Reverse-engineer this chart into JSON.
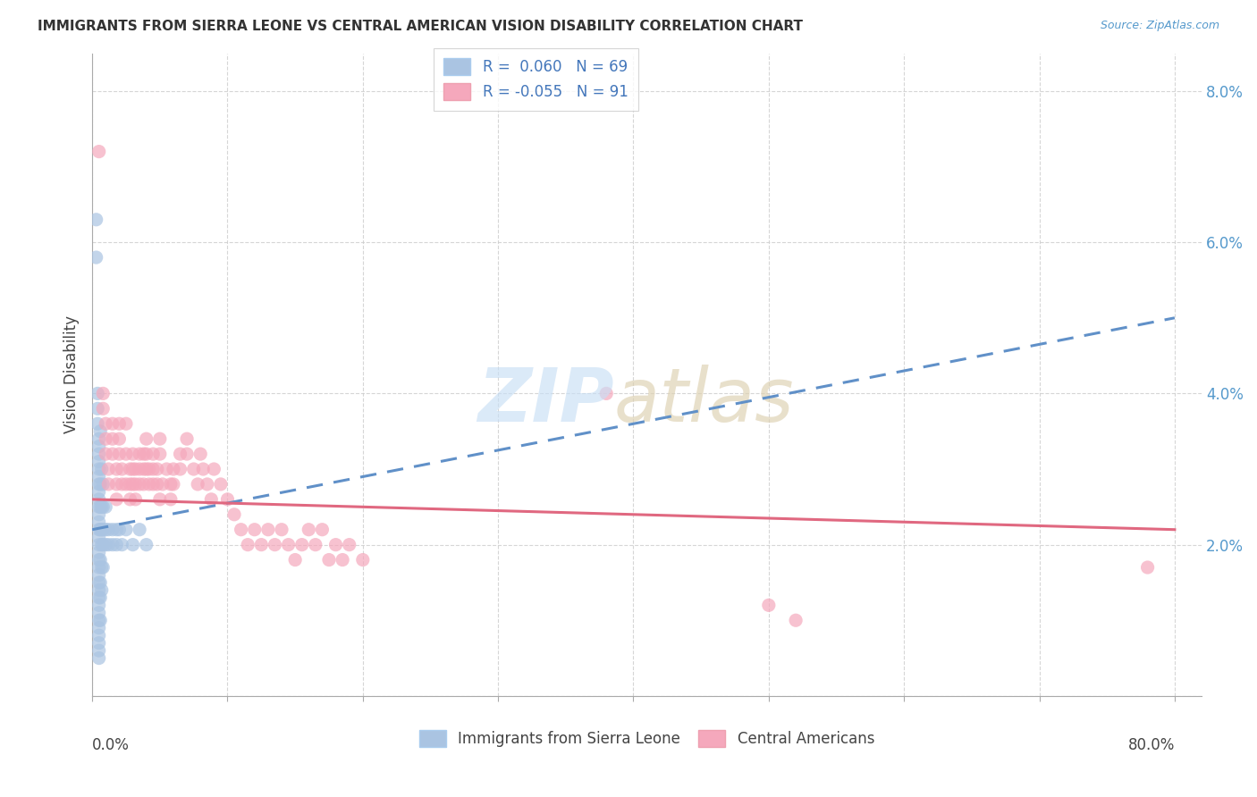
{
  "title": "IMMIGRANTS FROM SIERRA LEONE VS CENTRAL AMERICAN VISION DISABILITY CORRELATION CHART",
  "source": "Source: ZipAtlas.com",
  "ylabel": "Vision Disability",
  "ylim": [
    0.0,
    0.085
  ],
  "xlim": [
    0.0,
    0.82
  ],
  "y_ticks": [
    0.0,
    0.02,
    0.04,
    0.06,
    0.08
  ],
  "y_tick_labels": [
    "",
    "2.0%",
    "4.0%",
    "6.0%",
    "8.0%"
  ],
  "blue_color": "#aac4e2",
  "pink_color": "#f5a8bc",
  "blue_line_color": "#6090c8",
  "pink_line_color": "#e06880",
  "blue_line": [
    [
      0.0,
      0.022
    ],
    [
      0.8,
      0.05
    ]
  ],
  "pink_line": [
    [
      0.0,
      0.026
    ],
    [
      0.8,
      0.022
    ]
  ],
  "blue_scatter": [
    [
      0.003,
      0.063
    ],
    [
      0.003,
      0.058
    ],
    [
      0.004,
      0.04
    ],
    [
      0.004,
      0.038
    ],
    [
      0.004,
      0.036
    ],
    [
      0.005,
      0.034
    ],
    [
      0.005,
      0.033
    ],
    [
      0.005,
      0.032
    ],
    [
      0.005,
      0.031
    ],
    [
      0.005,
      0.03
    ],
    [
      0.005,
      0.029
    ],
    [
      0.005,
      0.028
    ],
    [
      0.005,
      0.027
    ],
    [
      0.005,
      0.026
    ],
    [
      0.005,
      0.025
    ],
    [
      0.005,
      0.024
    ],
    [
      0.005,
      0.023
    ],
    [
      0.005,
      0.022
    ],
    [
      0.005,
      0.021
    ],
    [
      0.005,
      0.02
    ],
    [
      0.005,
      0.019
    ],
    [
      0.005,
      0.018
    ],
    [
      0.005,
      0.017
    ],
    [
      0.005,
      0.016
    ],
    [
      0.005,
      0.015
    ],
    [
      0.005,
      0.014
    ],
    [
      0.005,
      0.013
    ],
    [
      0.005,
      0.012
    ],
    [
      0.005,
      0.011
    ],
    [
      0.005,
      0.01
    ],
    [
      0.005,
      0.009
    ],
    [
      0.005,
      0.008
    ],
    [
      0.005,
      0.007
    ],
    [
      0.005,
      0.006
    ],
    [
      0.005,
      0.005
    ],
    [
      0.006,
      0.035
    ],
    [
      0.006,
      0.028
    ],
    [
      0.006,
      0.025
    ],
    [
      0.006,
      0.022
    ],
    [
      0.006,
      0.018
    ],
    [
      0.006,
      0.015
    ],
    [
      0.006,
      0.013
    ],
    [
      0.006,
      0.01
    ],
    [
      0.007,
      0.03
    ],
    [
      0.007,
      0.025
    ],
    [
      0.007,
      0.022
    ],
    [
      0.007,
      0.02
    ],
    [
      0.007,
      0.017
    ],
    [
      0.007,
      0.014
    ],
    [
      0.008,
      0.028
    ],
    [
      0.008,
      0.025
    ],
    [
      0.008,
      0.022
    ],
    [
      0.008,
      0.02
    ],
    [
      0.008,
      0.017
    ],
    [
      0.01,
      0.025
    ],
    [
      0.01,
      0.022
    ],
    [
      0.01,
      0.02
    ],
    [
      0.012,
      0.022
    ],
    [
      0.012,
      0.02
    ],
    [
      0.015,
      0.022
    ],
    [
      0.015,
      0.02
    ],
    [
      0.018,
      0.022
    ],
    [
      0.018,
      0.02
    ],
    [
      0.02,
      0.022
    ],
    [
      0.022,
      0.02
    ],
    [
      0.025,
      0.022
    ],
    [
      0.03,
      0.02
    ],
    [
      0.035,
      0.022
    ],
    [
      0.04,
      0.02
    ]
  ],
  "pink_scatter": [
    [
      0.005,
      0.072
    ],
    [
      0.008,
      0.04
    ],
    [
      0.008,
      0.038
    ],
    [
      0.01,
      0.036
    ],
    [
      0.01,
      0.034
    ],
    [
      0.01,
      0.032
    ],
    [
      0.012,
      0.03
    ],
    [
      0.012,
      0.028
    ],
    [
      0.015,
      0.036
    ],
    [
      0.015,
      0.034
    ],
    [
      0.015,
      0.032
    ],
    [
      0.018,
      0.03
    ],
    [
      0.018,
      0.028
    ],
    [
      0.018,
      0.026
    ],
    [
      0.02,
      0.036
    ],
    [
      0.02,
      0.034
    ],
    [
      0.02,
      0.032
    ],
    [
      0.022,
      0.03
    ],
    [
      0.022,
      0.028
    ],
    [
      0.025,
      0.036
    ],
    [
      0.025,
      0.032
    ],
    [
      0.025,
      0.028
    ],
    [
      0.028,
      0.03
    ],
    [
      0.028,
      0.028
    ],
    [
      0.028,
      0.026
    ],
    [
      0.03,
      0.032
    ],
    [
      0.03,
      0.03
    ],
    [
      0.03,
      0.028
    ],
    [
      0.032,
      0.03
    ],
    [
      0.032,
      0.028
    ],
    [
      0.032,
      0.026
    ],
    [
      0.035,
      0.032
    ],
    [
      0.035,
      0.03
    ],
    [
      0.035,
      0.028
    ],
    [
      0.038,
      0.032
    ],
    [
      0.038,
      0.03
    ],
    [
      0.038,
      0.028
    ],
    [
      0.04,
      0.034
    ],
    [
      0.04,
      0.032
    ],
    [
      0.04,
      0.03
    ],
    [
      0.042,
      0.03
    ],
    [
      0.042,
      0.028
    ],
    [
      0.045,
      0.032
    ],
    [
      0.045,
      0.03
    ],
    [
      0.045,
      0.028
    ],
    [
      0.048,
      0.03
    ],
    [
      0.048,
      0.028
    ],
    [
      0.05,
      0.034
    ],
    [
      0.05,
      0.032
    ],
    [
      0.05,
      0.026
    ],
    [
      0.052,
      0.028
    ],
    [
      0.055,
      0.03
    ],
    [
      0.058,
      0.028
    ],
    [
      0.058,
      0.026
    ],
    [
      0.06,
      0.03
    ],
    [
      0.06,
      0.028
    ],
    [
      0.065,
      0.032
    ],
    [
      0.065,
      0.03
    ],
    [
      0.07,
      0.034
    ],
    [
      0.07,
      0.032
    ],
    [
      0.075,
      0.03
    ],
    [
      0.078,
      0.028
    ],
    [
      0.08,
      0.032
    ],
    [
      0.082,
      0.03
    ],
    [
      0.085,
      0.028
    ],
    [
      0.088,
      0.026
    ],
    [
      0.09,
      0.03
    ],
    [
      0.095,
      0.028
    ],
    [
      0.1,
      0.026
    ],
    [
      0.105,
      0.024
    ],
    [
      0.11,
      0.022
    ],
    [
      0.115,
      0.02
    ],
    [
      0.12,
      0.022
    ],
    [
      0.125,
      0.02
    ],
    [
      0.13,
      0.022
    ],
    [
      0.135,
      0.02
    ],
    [
      0.14,
      0.022
    ],
    [
      0.145,
      0.02
    ],
    [
      0.15,
      0.018
    ],
    [
      0.155,
      0.02
    ],
    [
      0.16,
      0.022
    ],
    [
      0.165,
      0.02
    ],
    [
      0.17,
      0.022
    ],
    [
      0.175,
      0.018
    ],
    [
      0.18,
      0.02
    ],
    [
      0.185,
      0.018
    ],
    [
      0.19,
      0.02
    ],
    [
      0.2,
      0.018
    ],
    [
      0.38,
      0.04
    ],
    [
      0.5,
      0.012
    ],
    [
      0.52,
      0.01
    ],
    [
      0.78,
      0.017
    ]
  ]
}
